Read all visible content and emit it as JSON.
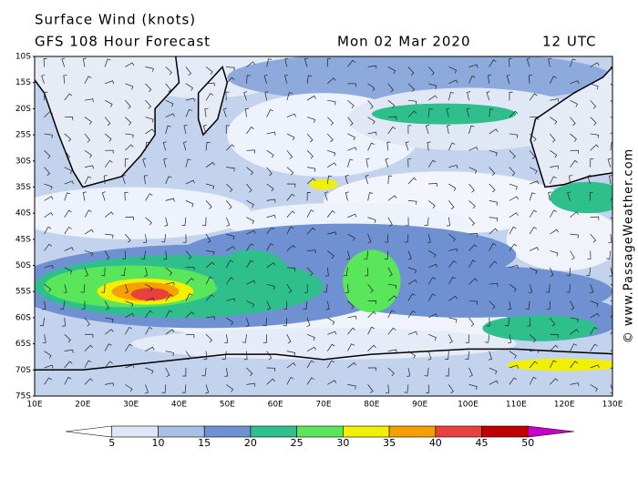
{
  "header": {
    "title": "Surface Wind (knots)",
    "subtitle": "GFS 108 Hour Forecast",
    "date": "Mon 02 Mar 2020",
    "time": "12 UTC"
  },
  "lat_labels": [
    "10S",
    "15S",
    "20S",
    "25S",
    "30S",
    "35S",
    "40S",
    "45S",
    "50S",
    "55S",
    "60S",
    "65S",
    "70S",
    "75S"
  ],
  "lon_labels": [
    "10E",
    "20E",
    "30E",
    "40E",
    "50E",
    "60E",
    "70E",
    "80E",
    "90E",
    "100E",
    "110E",
    "120E",
    "130E"
  ],
  "colorbar": {
    "labels": [
      "5",
      "10",
      "15",
      "20",
      "25",
      "30",
      "35",
      "40",
      "45",
      "50"
    ],
    "colors": [
      "#ffffff",
      "#dfe7f5",
      "#a9bfe4",
      "#6f91d2",
      "#2fbf8c",
      "#5ae65a",
      "#f0f000",
      "#f5a000",
      "#e8403c",
      "#c00000",
      "#c800c8"
    ]
  },
  "credit": "© www.PassageWeather.com"
}
